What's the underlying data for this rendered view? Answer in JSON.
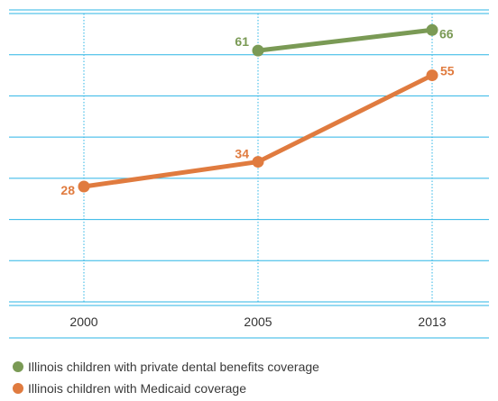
{
  "chart_data": {
    "type": "line",
    "x": [
      "2000",
      "2005",
      "2013"
    ],
    "ylim": [
      0,
      70
    ],
    "grid": true,
    "legend_position": "bottom-left",
    "series": [
      {
        "name": "Illinois children with private dental benefits coverage",
        "color": "#7a9a55",
        "values": [
          null,
          61,
          66
        ]
      },
      {
        "name": "Illinois children with Medicaid coverage",
        "color": "#e07b3f",
        "values": [
          28,
          34,
          55
        ]
      }
    ]
  },
  "colors": {
    "grid": "#2bb5e6",
    "tick_text": "#333333"
  }
}
